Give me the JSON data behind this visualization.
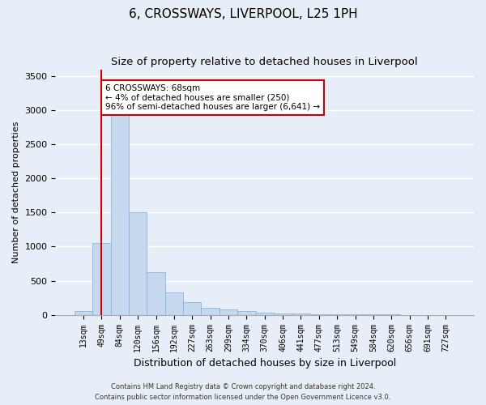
{
  "title1": "6, CROSSWAYS, LIVERPOOL, L25 1PH",
  "title2": "Size of property relative to detached houses in Liverpool",
  "xlabel": "Distribution of detached houses by size in Liverpool",
  "ylabel": "Number of detached properties",
  "categories": [
    "13sqm",
    "49sqm",
    "84sqm",
    "120sqm",
    "156sqm",
    "192sqm",
    "227sqm",
    "263sqm",
    "299sqm",
    "334sqm",
    "370sqm",
    "406sqm",
    "441sqm",
    "477sqm",
    "513sqm",
    "549sqm",
    "584sqm",
    "620sqm",
    "656sqm",
    "691sqm",
    "727sqm"
  ],
  "values": [
    50,
    1050,
    2950,
    1500,
    630,
    330,
    190,
    100,
    80,
    50,
    30,
    20,
    15,
    10,
    8,
    5,
    4,
    3,
    2,
    1,
    1
  ],
  "bar_color": "#c5d8ee",
  "bar_edge_color": "#7aafd4",
  "ylim": [
    0,
    3600
  ],
  "yticks": [
    0,
    500,
    1000,
    1500,
    2000,
    2500,
    3000,
    3500
  ],
  "red_line_x": 1.0,
  "annotation_text": "6 CROSSWAYS: 68sqm\n← 4% of detached houses are smaller (250)\n96% of semi-detached houses are larger (6,641) →",
  "annotation_box_color": "#ffffff",
  "annotation_box_edge": "#cc0000",
  "red_line_color": "#cc0000",
  "title1_fontsize": 11,
  "title2_fontsize": 9.5,
  "footer1": "Contains HM Land Registry data © Crown copyright and database right 2024.",
  "footer2": "Contains public sector information licensed under the Open Government Licence v3.0.",
  "background_color": "#e8eef8",
  "plot_bg_color": "#e8eef8",
  "grid_color": "#ffffff",
  "annotation_fontsize": 7.5,
  "ylabel_fontsize": 8,
  "xlabel_fontsize": 9,
  "tick_fontsize": 7
}
